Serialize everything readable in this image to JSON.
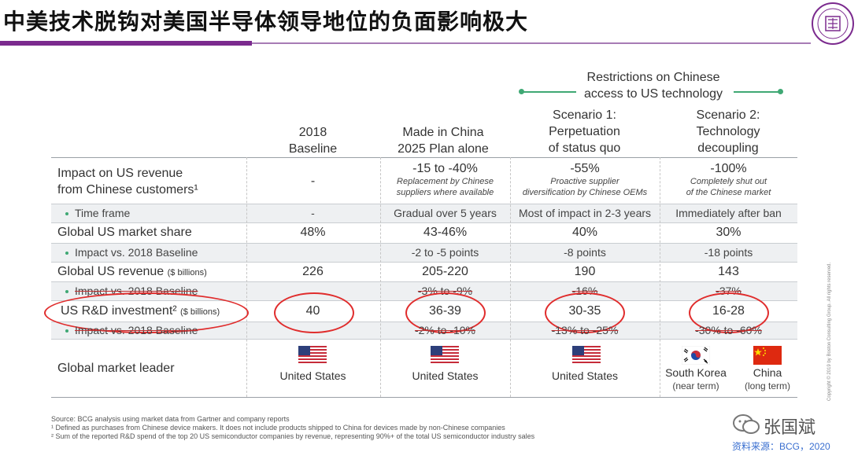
{
  "title": "中美技术脱钩对美国半导体领导地位的负面影响极大",
  "restrictions_header": [
    "Restrictions on Chinese",
    "access to US technology"
  ],
  "columns": [
    {
      "line1": "2018",
      "line2": "Baseline"
    },
    {
      "line1": "Made in China",
      "line2": "2025 Plan alone"
    },
    {
      "line1": "Scenario 1:",
      "line2": "Perpetuation",
      "line3": "of status quo"
    },
    {
      "line1": "Scenario 2:",
      "line2": "Technology",
      "line3": "decoupling"
    }
  ],
  "rows": {
    "impact_revenue": {
      "label1": "Impact on US revenue",
      "label2": "from Chinese customers¹",
      "baseline": "-",
      "mic": {
        "value": "-15 to -40%",
        "note1": "Replacement by Chinese",
        "note2": "suppliers where available"
      },
      "s1": {
        "value": "-55%",
        "note1": "Proactive supplier",
        "note2": "diversification by Chinese OEMs"
      },
      "s2": {
        "value": "-100%",
        "note1": "Completely shut out",
        "note2": "of the Chinese market"
      }
    },
    "time_frame": {
      "label": "Time frame",
      "baseline": "-",
      "mic": "Gradual over 5 years",
      "s1": "Most of impact in 2-3 years",
      "s2": "Immediately after ban"
    },
    "market_share": {
      "label": "Global US market share",
      "baseline": "48%",
      "mic": "43-46%",
      "s1": "40%",
      "s2": "30%"
    },
    "market_share_impact": {
      "label": "Impact vs. 2018 Baseline",
      "mic": "-2 to -5 points",
      "s1": "-8 points",
      "s2": "-18 points"
    },
    "revenue": {
      "label": "Global US revenue",
      "unit": "($ billions)",
      "baseline": "226",
      "mic": "205-220",
      "s1": "190",
      "s2": "143"
    },
    "revenue_impact": {
      "label": "Impact vs. 2018 Baseline",
      "mic": "-3% to -9%",
      "s1": "-16%",
      "s2": "-37%"
    },
    "rd": {
      "label": "US R&D investment²",
      "unit": "($ billions)",
      "baseline": "40",
      "mic": "36-39",
      "s1": "30-35",
      "s2": "16-28"
    },
    "rd_impact": {
      "label": "Impact vs. 2018 Baseline",
      "mic": "-2% to -10%",
      "s1": "-13% to -25%",
      "s2": "-30% to -60%"
    },
    "leader": {
      "label": "Global market leader",
      "baseline": "United States",
      "mic": "United States",
      "s1": "United States",
      "s2a": "South Korea",
      "s2a_note": "(near term)",
      "s2b": "China",
      "s2b_note": "(long term)"
    }
  },
  "sources": [
    "Source: BCG analysis using market data from Gartner and company reports",
    "¹ Defined as purchases from Chinese device makers. It does not include products shipped to China for devices made by non-Chinese companies",
    "² Sum of the reported R&D spend of the top 20 US semiconductor companies by revenue, representing 90%+ of the total US semiconductor industry sales"
  ],
  "copyright": "Copyright © 2019 by Boston Consulting Group. All rights reserved.",
  "watermark": "张国斌",
  "citation": "资料来源：BCG，2020",
  "colors": {
    "accent_purple": "#7b2a8e",
    "green": "#3fa874",
    "highlight_red": "#e02d2d",
    "row_bg": "#eef0f2"
  }
}
